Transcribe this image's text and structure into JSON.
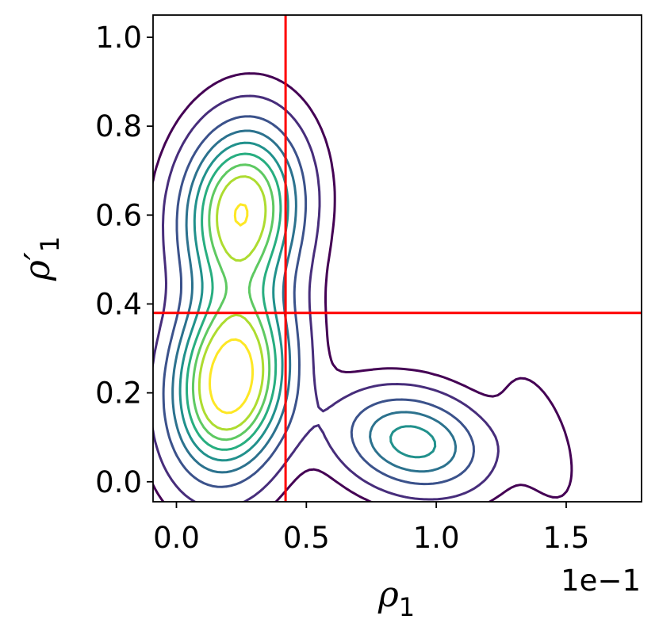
{
  "chart_data": {
    "type": "contour",
    "xlabel": {
      "base": "ρ",
      "sub": "1"
    },
    "ylabel": {
      "base": "ρ′",
      "sub": "1"
    },
    "x_offset_text": "1e−1",
    "x_scale_exponent": -1,
    "xlim": [
      -0.009,
      0.179
    ],
    "ylim": [
      -0.045,
      1.05
    ],
    "xticks": [
      0.0,
      0.05,
      0.1,
      0.15
    ],
    "xtick_labels": [
      "0.0",
      "0.5",
      "1.0",
      "1.5"
    ],
    "yticks": [
      0.0,
      0.2,
      0.4,
      0.6,
      0.8,
      1.0
    ],
    "ytick_labels": [
      "0.0",
      "0.2",
      "0.4",
      "0.6",
      "0.8",
      "1.0"
    ],
    "colormap": "viridis",
    "density_modes": [
      {
        "x": 0.021,
        "y": 0.23,
        "weight": 1.0
      },
      {
        "x": 0.025,
        "y": 0.61,
        "weight": 0.85
      },
      {
        "x": 0.091,
        "y": 0.09,
        "weight": 0.45
      },
      {
        "x": 0.14,
        "y": 0.1,
        "weight": 0.08
      }
    ],
    "reference_lines": [
      {
        "orientation": "vertical",
        "x": 0.042,
        "color": "#ff0000"
      },
      {
        "orientation": "horizontal",
        "y": 0.38,
        "color": "#ff0000"
      }
    ],
    "grid": false,
    "legend": "none"
  }
}
